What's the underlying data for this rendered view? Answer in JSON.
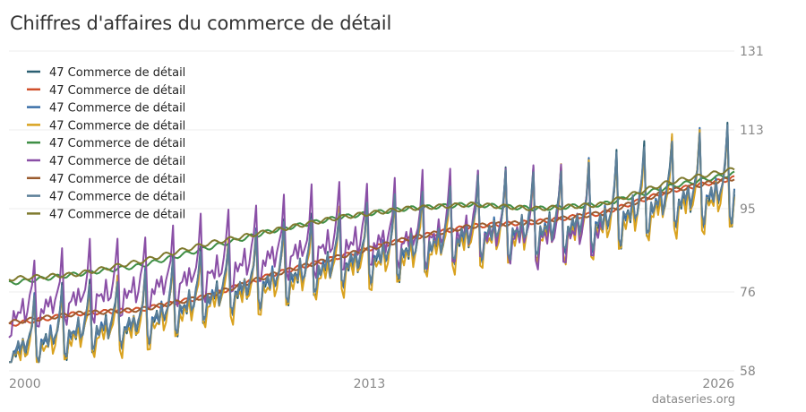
{
  "title": "Chiffres d'affaires du commerce de détail",
  "watermark": "dataseries.org",
  "chart_data": {
    "type": "line",
    "title": "Chiffres d'affaires du commerce de détail",
    "x_ticks": [
      "2000",
      "2013",
      "2026"
    ],
    "y_ticks": [
      58,
      76,
      95,
      113,
      131
    ],
    "xlim": [
      "2000-01",
      "2026-03"
    ],
    "ylim": [
      58,
      131
    ],
    "grid": true,
    "legend_position": "top-left",
    "series": [
      {
        "name": "47 Commerce de détail",
        "color": "#2b5f72",
        "start": "2000-01",
        "end": "2026-03",
        "base": [
          65.5,
          70,
          72,
          78,
          82,
          86,
          89,
          93,
          94,
          96,
          101,
          103
        ],
        "amp": 0.28,
        "sub": 0.93,
        "kind": "seasonal"
      },
      {
        "name": "47 Commerce de détail",
        "color": "#d0502b",
        "start": "2000-01",
        "end": "2026-03",
        "base": [
          68.5,
          71,
          72,
          75,
          80,
          84,
          88,
          91,
          92,
          94,
          99,
          102
        ],
        "amp": 0.0,
        "sub": 1.0,
        "kind": "trend"
      },
      {
        "name": "47 Commerce de détail",
        "color": "#3a6fa8",
        "start": "2000-01",
        "end": "2026-03",
        "base": [
          65.5,
          70,
          72,
          78,
          82,
          86,
          89,
          93,
          94,
          96,
          101,
          103
        ],
        "amp": 0.27,
        "sub": 0.92,
        "kind": "seasonal"
      },
      {
        "name": "47 Commerce de détail",
        "color": "#d9a21f",
        "start": "2000-01",
        "end": "2026-03",
        "base": [
          64.5,
          69,
          71,
          77,
          81,
          85,
          88,
          92,
          93,
          95,
          100,
          102
        ],
        "amp": 0.29,
        "sub": 0.92,
        "kind": "seasonal"
      },
      {
        "name": "47 Commerce de détail",
        "color": "#3f8f46",
        "start": "2000-01",
        "end": "2026-03",
        "base": [
          78,
          80,
          82,
          86,
          90,
          93,
          95,
          96,
          95,
          96,
          100,
          103
        ],
        "amp": 0.0,
        "sub": 1.0,
        "kind": "trend"
      },
      {
        "name": "47 Commerce de détail",
        "color": "#8a4fa6",
        "start": "2000-01",
        "end": "2021-06",
        "base": [
          74,
          78,
          80,
          84,
          88,
          91,
          92,
          94,
          93,
          95,
          100,
          103
        ],
        "amp": 0.3,
        "sub": 0.94,
        "kind": "seasonal"
      },
      {
        "name": "47 Commerce de détail",
        "color": "#9a5b2e",
        "start": "2000-01",
        "end": "2026-03",
        "base": [
          69,
          71,
          72,
          75,
          80,
          84,
          88,
          91,
          92,
          94,
          99,
          102
        ],
        "amp": 0.0,
        "sub": 1.0,
        "kind": "trend"
      },
      {
        "name": "47 Commerce de détail",
        "color": "#5c7f98",
        "start": "2000-01",
        "end": "2026-03",
        "base": [
          65.5,
          70,
          72,
          78,
          82,
          86,
          89,
          93,
          94,
          96,
          101,
          103
        ],
        "amp": 0.26,
        "sub": 0.93,
        "kind": "seasonal"
      },
      {
        "name": "47 Commerce de détail",
        "color": "#7f7a2e",
        "start": "2000-01",
        "end": "2026-03",
        "base": [
          79,
          80,
          83,
          87,
          90,
          93,
          95,
          96,
          95,
          96,
          101,
          104
        ],
        "amp": 0.0,
        "sub": 1.0,
        "kind": "trend"
      }
    ]
  }
}
